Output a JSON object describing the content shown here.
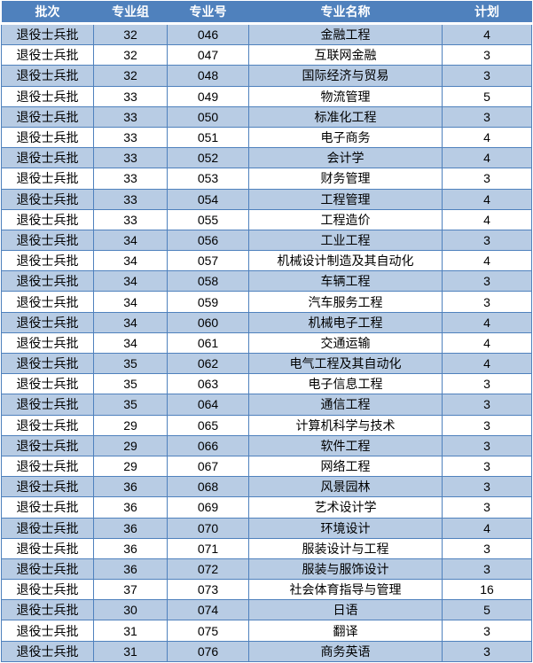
{
  "headers": [
    "批次",
    "专业组",
    "专业号",
    "专业名称",
    "计划"
  ],
  "colors": {
    "header": "#4F81BD",
    "alt_row": "#B8CCE4",
    "border": "#4F81BD"
  },
  "rows": [
    [
      "退役士兵批",
      "32",
      "046",
      "金融工程",
      "4"
    ],
    [
      "退役士兵批",
      "32",
      "047",
      "互联网金融",
      "3"
    ],
    [
      "退役士兵批",
      "32",
      "048",
      "国际经济与贸易",
      "3"
    ],
    [
      "退役士兵批",
      "33",
      "049",
      "物流管理",
      "5"
    ],
    [
      "退役士兵批",
      "33",
      "050",
      "标准化工程",
      "3"
    ],
    [
      "退役士兵批",
      "33",
      "051",
      "电子商务",
      "4"
    ],
    [
      "退役士兵批",
      "33",
      "052",
      "会计学",
      "4"
    ],
    [
      "退役士兵批",
      "33",
      "053",
      "财务管理",
      "3"
    ],
    [
      "退役士兵批",
      "33",
      "054",
      "工程管理",
      "4"
    ],
    [
      "退役士兵批",
      "33",
      "055",
      "工程造价",
      "4"
    ],
    [
      "退役士兵批",
      "34",
      "056",
      "工业工程",
      "3"
    ],
    [
      "退役士兵批",
      "34",
      "057",
      "机械设计制造及其自动化",
      "4"
    ],
    [
      "退役士兵批",
      "34",
      "058",
      "车辆工程",
      "3"
    ],
    [
      "退役士兵批",
      "34",
      "059",
      "汽车服务工程",
      "3"
    ],
    [
      "退役士兵批",
      "34",
      "060",
      "机械电子工程",
      "4"
    ],
    [
      "退役士兵批",
      "34",
      "061",
      "交通运输",
      "4"
    ],
    [
      "退役士兵批",
      "35",
      "062",
      "电气工程及其自动化",
      "4"
    ],
    [
      "退役士兵批",
      "35",
      "063",
      "电子信息工程",
      "3"
    ],
    [
      "退役士兵批",
      "35",
      "064",
      "通信工程",
      "3"
    ],
    [
      "退役士兵批",
      "29",
      "065",
      "计算机科学与技术",
      "3"
    ],
    [
      "退役士兵批",
      "29",
      "066",
      "软件工程",
      "3"
    ],
    [
      "退役士兵批",
      "29",
      "067",
      "网络工程",
      "3"
    ],
    [
      "退役士兵批",
      "36",
      "068",
      "风景园林",
      "3"
    ],
    [
      "退役士兵批",
      "36",
      "069",
      "艺术设计学",
      "3"
    ],
    [
      "退役士兵批",
      "36",
      "070",
      "环境设计",
      "4"
    ],
    [
      "退役士兵批",
      "36",
      "071",
      "服装设计与工程",
      "3"
    ],
    [
      "退役士兵批",
      "36",
      "072",
      "服装与服饰设计",
      "3"
    ],
    [
      "退役士兵批",
      "37",
      "073",
      "社会体育指导与管理",
      "16"
    ],
    [
      "退役士兵批",
      "30",
      "074",
      "日语",
      "5"
    ],
    [
      "退役士兵批",
      "31",
      "075",
      "翻译",
      "3"
    ],
    [
      "退役士兵批",
      "31",
      "076",
      "商务英语",
      "3"
    ]
  ]
}
